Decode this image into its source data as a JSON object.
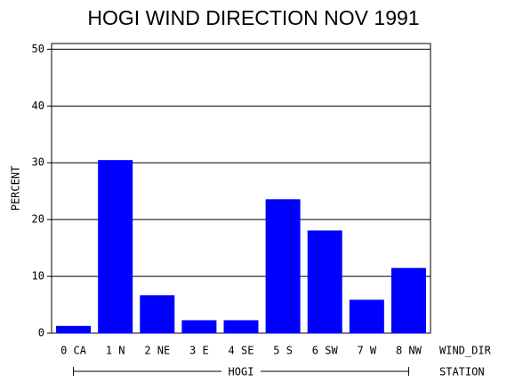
{
  "chart_data": {
    "type": "bar",
    "title": "HOGI WIND DIRECTION NOV 1991",
    "y_label": "PERCENT",
    "x_label": "WIND_DIR",
    "group_label": "HOGI",
    "group_axis_label": "STATION",
    "categories": [
      "0 CA",
      "1 N",
      "2 NE",
      "3 E",
      "4 SE",
      "5 S",
      "6 SW",
      "7 W",
      "8 NW"
    ],
    "values": [
      1.2,
      30.4,
      6.6,
      2.2,
      2.2,
      23.5,
      18.0,
      5.8,
      11.4
    ],
    "color": "#0000ff",
    "ylim": [
      0,
      51
    ],
    "yticks": [
      0,
      10,
      20,
      30,
      40,
      50
    ],
    "grid": true
  }
}
